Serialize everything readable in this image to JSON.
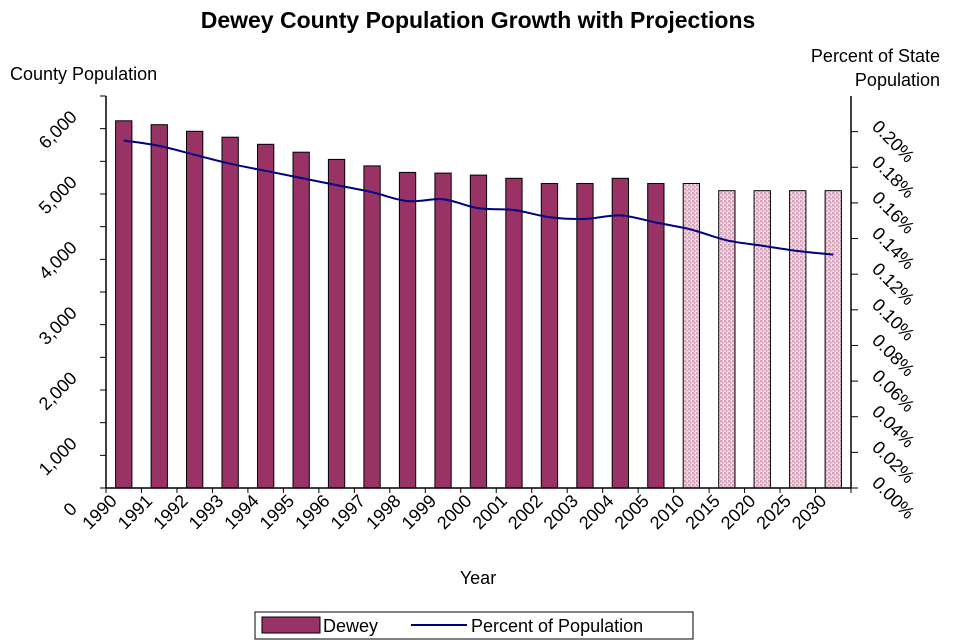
{
  "chart_data": {
    "type": "bar",
    "title": "Dewey County Population Growth with Projections",
    "xlabel": "Year",
    "ylabel_left": "County Population",
    "ylabel_right_line1": "Percent of State",
    "ylabel_right_line2": "Population",
    "categories": [
      "1990",
      "1991",
      "1992",
      "1993",
      "1994",
      "1995",
      "1996",
      "1997",
      "1998",
      "1999",
      "2000",
      "2001",
      "2002",
      "2003",
      "2004",
      "2005",
      "2010",
      "2015",
      "2020",
      "2025",
      "2030"
    ],
    "ylim_left": [
      0,
      6000
    ],
    "yticks_left": [
      "0",
      "1,000",
      "2,000",
      "3,000",
      "4,000",
      "5,000",
      "6,000"
    ],
    "ylim_right": [
      0,
      0.22
    ],
    "yticks_right": [
      "0.00%",
      "0.02%",
      "0.04%",
      "0.06%",
      "0.08%",
      "0.10%",
      "0.12%",
      "0.14%",
      "0.16%",
      "0.18%",
      "0.20%"
    ],
    "series": [
      {
        "name": "Dewey",
        "kind": "bar",
        "color": "#993366",
        "projected_color": "#f2c6d6",
        "projected_from_index": 16,
        "values": [
          5620,
          5560,
          5460,
          5370,
          5260,
          5140,
          5030,
          4930,
          4830,
          4820,
          4790,
          4740,
          4660,
          4660,
          4740,
          4660,
          4660,
          4550,
          4550,
          4550,
          4550
        ]
      },
      {
        "name": "Percent of Population",
        "kind": "line",
        "color": "#000080",
        "values": [
          0.195,
          0.192,
          0.187,
          0.182,
          0.178,
          0.174,
          0.17,
          0.166,
          0.161,
          0.162,
          0.157,
          0.156,
          0.152,
          0.151,
          0.153,
          0.149,
          0.145,
          0.139,
          0.136,
          0.133,
          0.131
        ]
      }
    ],
    "legend_position": "bottom"
  }
}
